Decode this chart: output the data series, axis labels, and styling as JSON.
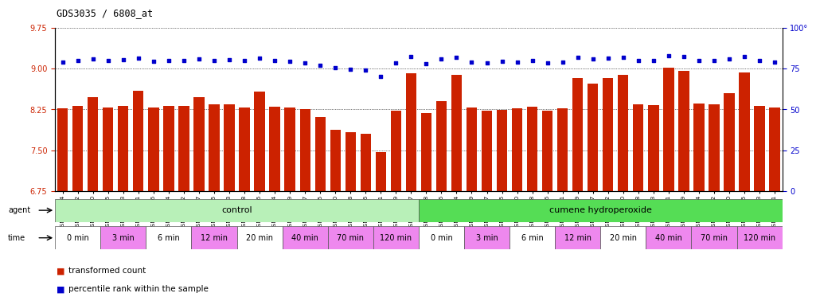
{
  "title": "GDS3035 / 6808_at",
  "samples": [
    "GSM184944",
    "GSM184952",
    "GSM184960",
    "GSM184945",
    "GSM184953",
    "GSM184961",
    "GSM184946",
    "GSM184954",
    "GSM184962",
    "GSM184947",
    "GSM184955",
    "GSM184963",
    "GSM184948",
    "GSM184956",
    "GSM184964",
    "GSM184949",
    "GSM184957",
    "GSM184965",
    "GSM184950",
    "GSM184958",
    "GSM184966",
    "GSM184951",
    "GSM184959",
    "GSM184967",
    "GSM184968",
    "GSM184976",
    "GSM184984",
    "GSM184969",
    "GSM184977",
    "GSM184985",
    "GSM184970",
    "GSM184978",
    "GSM184986",
    "GSM184971",
    "GSM184979",
    "GSM184987",
    "GSM184972",
    "GSM184980",
    "GSM184988",
    "GSM184973",
    "GSM184981",
    "GSM184989",
    "GSM184974",
    "GSM184982",
    "GSM184990",
    "GSM184975",
    "GSM184983",
    "GSM184991"
  ],
  "bar_values": [
    8.27,
    8.32,
    8.48,
    8.28,
    8.32,
    8.59,
    8.29,
    8.32,
    8.32,
    8.48,
    8.35,
    8.35,
    8.28,
    8.57,
    8.3,
    8.28,
    8.26,
    8.11,
    7.87,
    7.83,
    7.8,
    7.47,
    8.22,
    8.92,
    8.18,
    8.4,
    8.88,
    8.28,
    8.22,
    8.24,
    8.27,
    8.3,
    8.22,
    8.27,
    8.83,
    8.72,
    8.83,
    8.89,
    8.34,
    8.33,
    9.02,
    8.95,
    8.36,
    8.35,
    8.55,
    8.93,
    8.31,
    8.29
  ],
  "percentile_values": [
    9.12,
    9.15,
    9.17,
    9.14,
    9.16,
    9.19,
    9.13,
    9.14,
    9.15,
    9.18,
    9.14,
    9.16,
    9.15,
    9.19,
    9.14,
    9.13,
    9.11,
    9.06,
    9.02,
    8.99,
    8.97,
    8.85,
    9.1,
    9.22,
    9.09,
    9.18,
    9.21,
    9.12,
    9.11,
    9.13,
    9.12,
    9.14,
    9.11,
    9.12,
    9.2,
    9.18,
    9.19,
    9.21,
    9.14,
    9.14,
    9.23,
    9.22,
    9.15,
    9.14,
    9.17,
    9.22,
    9.14,
    9.12
  ],
  "ylim_left": [
    6.75,
    9.75
  ],
  "ylim_right": [
    0,
    100
  ],
  "yticks_left": [
    6.75,
    7.5,
    8.25,
    9.0,
    9.75
  ],
  "yticks_right": [
    0,
    25,
    50,
    75,
    100
  ],
  "bar_color": "#cc2200",
  "dot_color": "#0000cc",
  "bg_color": "#ffffff",
  "agent_groups": [
    {
      "label": "control",
      "start": 0,
      "end": 24,
      "color": "#b8f0b8"
    },
    {
      "label": "cumene hydroperoxide",
      "start": 24,
      "end": 48,
      "color": "#55dd55"
    }
  ],
  "time_groups": [
    {
      "label": "0 min",
      "start": 0,
      "end": 3,
      "color": "#ffffff"
    },
    {
      "label": "3 min",
      "start": 3,
      "end": 6,
      "color": "#ee88ee"
    },
    {
      "label": "6 min",
      "start": 6,
      "end": 9,
      "color": "#ffffff"
    },
    {
      "label": "12 min",
      "start": 9,
      "end": 12,
      "color": "#ee88ee"
    },
    {
      "label": "20 min",
      "start": 12,
      "end": 15,
      "color": "#ffffff"
    },
    {
      "label": "40 min",
      "start": 15,
      "end": 18,
      "color": "#ee88ee"
    },
    {
      "label": "70 min",
      "start": 18,
      "end": 21,
      "color": "#ee88ee"
    },
    {
      "label": "120 min",
      "start": 21,
      "end": 24,
      "color": "#ee88ee"
    },
    {
      "label": "0 min",
      "start": 24,
      "end": 27,
      "color": "#ffffff"
    },
    {
      "label": "3 min",
      "start": 27,
      "end": 30,
      "color": "#ee88ee"
    },
    {
      "label": "6 min",
      "start": 30,
      "end": 33,
      "color": "#ffffff"
    },
    {
      "label": "12 min",
      "start": 33,
      "end": 36,
      "color": "#ee88ee"
    },
    {
      "label": "20 min",
      "start": 36,
      "end": 39,
      "color": "#ffffff"
    },
    {
      "label": "40 min",
      "start": 39,
      "end": 42,
      "color": "#ee88ee"
    },
    {
      "label": "70 min",
      "start": 42,
      "end": 45,
      "color": "#ee88ee"
    },
    {
      "label": "120 min",
      "start": 45,
      "end": 48,
      "color": "#ee88ee"
    }
  ]
}
